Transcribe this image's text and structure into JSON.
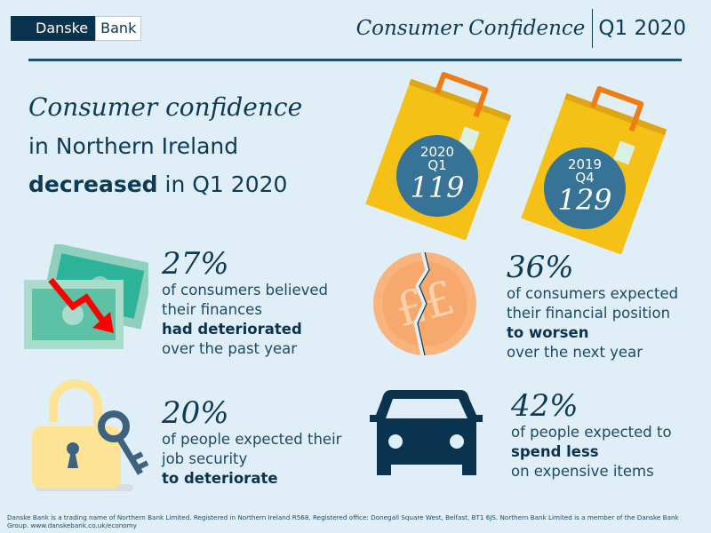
{
  "header": {
    "logo_left": "Danske",
    "logo_right": "Bank",
    "title": "Consumer Confidence",
    "period": "Q1 2020"
  },
  "headline": {
    "line1": "Consumer confidence",
    "line2": "in Northern Ireland",
    "bold": "decreased",
    "rest": "in Q1 2020"
  },
  "bags": [
    {
      "year": "2020",
      "quarter": "Q1",
      "value": "119"
    },
    {
      "year": "2019",
      "quarter": "Q4",
      "value": "129"
    }
  ],
  "stats": [
    {
      "icon": "banknotes-down-arrow-icon",
      "percent": "27%",
      "lines": [
        "of consumers believed",
        "their finances"
      ],
      "bold": "had deteriorated",
      "after": "over the past year"
    },
    {
      "icon": "cracked-pound-coin-icon",
      "percent": "36%",
      "lines": [
        "of consumers expected",
        "their financial position"
      ],
      "bold": "to worsen",
      "after": "over the next year"
    },
    {
      "icon": "padlock-key-icon",
      "percent": "20%",
      "lines": [
        "of people expected their",
        "job security"
      ],
      "bold": "to deteriorate",
      "after": ""
    },
    {
      "icon": "car-icon",
      "percent": "42%",
      "lines": [
        "of people expected to"
      ],
      "bold": "spend less",
      "after": "on expensive items"
    }
  ],
  "footer": "Danske Bank is a trading name of Northern Bank Limited. Registered in Northern Ireland R568. Registered office: Donegall Square West, Belfast, BT1 6JS. Northern Bank Limited is a member of the Danske Bank Group. www.danskebank.co.uk/economy",
  "colors": {
    "background": "#e0eff7",
    "navy": "#0a3350",
    "bag": "#f5c116",
    "circle": "#367396",
    "handle": "#f07c14"
  }
}
